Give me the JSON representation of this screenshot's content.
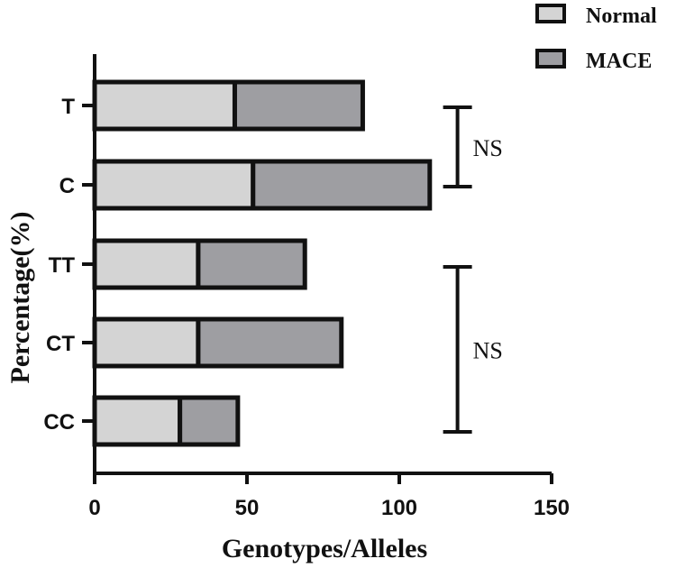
{
  "chart_data": {
    "type": "bar",
    "orientation": "horizontal",
    "stacked": true,
    "title": "",
    "xlabel": "Genotypes/Alleles",
    "ylabel": "Percentage(%)",
    "xlim": [
      0,
      150
    ],
    "x_ticks": [
      "0",
      "50",
      "100",
      "150"
    ],
    "categories": [
      "T",
      "C",
      "TT",
      "CT",
      "CC"
    ],
    "series": [
      {
        "name": "Normal",
        "color": "#d4d4d4",
        "values": [
          46,
          52,
          34,
          34,
          28
        ]
      },
      {
        "name": "MACE",
        "color": "#9e9ea2",
        "values": [
          42,
          58,
          35,
          47,
          19
        ]
      }
    ],
    "legend_position": "top-right",
    "grid": false,
    "annotations": [
      {
        "text": "NS",
        "from_category": "T",
        "to_category": "C",
        "x": 120
      },
      {
        "text": "NS",
        "from_category": "TT",
        "to_category": "CC",
        "x": 120
      }
    ]
  }
}
